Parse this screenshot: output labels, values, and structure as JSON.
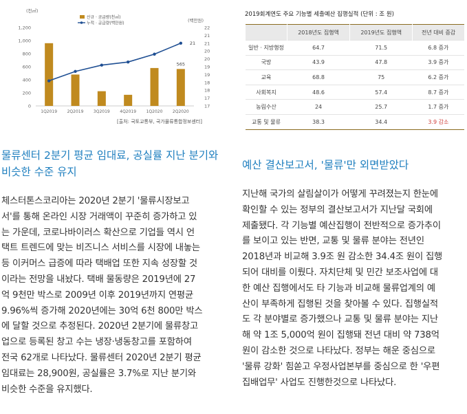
{
  "chart": {
    "left_unit": "(천㎡)",
    "right_unit": "(백만원)",
    "legend": [
      "신규 · 공급량(천㎡)",
      "누적 · 공급량(백만원)"
    ],
    "source": "[출처: 국토교통부, 국가물류통합정보센터]",
    "bar_color": "#c08a1f",
    "line_color": "#1f4f93"
  },
  "chart_data": {
    "type": "bar",
    "categories": [
      "1Q2019",
      "2Q2019",
      "3Q2019",
      "4Q2019",
      "1Q2020",
      "2Q2020"
    ],
    "series": [
      {
        "name": "신규 · 공급량(천㎡)",
        "type": "bar",
        "axis": "left",
        "values": [
          960,
          480,
          225,
          170,
          580,
          565
        ]
      },
      {
        "name": "누적 · 공급량(백만원)",
        "type": "line",
        "axis": "right",
        "values": [
          18.6,
          19.2,
          19.6,
          19.8,
          20.3,
          21
        ]
      }
    ],
    "data_labels": [
      "565",
      "21"
    ],
    "y_left": {
      "ticks": [
        "0",
        "200",
        "400",
        "600",
        "800",
        "1,000",
        "1,200"
      ],
      "range": [
        0,
        1200
      ]
    },
    "y_right": {
      "ticks": [
        "17",
        "17",
        "18",
        "18",
        "19",
        "19",
        "20",
        "20",
        "21",
        "21",
        "22"
      ],
      "range": [
        17,
        22
      ]
    }
  },
  "table": {
    "title": "2019회계연도 주요 기능별 세출예산 집행실적 (단위 : 조 원)",
    "headers": [
      "",
      "2018년도 집행액",
      "2019년도 집행액",
      "전년 대비 증감"
    ],
    "rows": [
      [
        "일반 · 지방행정",
        "64.7",
        "71.5",
        "6.8 증가"
      ],
      [
        "국방",
        "43.9",
        "47.8",
        "3.9 증가"
      ],
      [
        "교육",
        "68.8",
        "75",
        "6.2 증가"
      ],
      [
        "사회복지",
        "48.6",
        "57.4",
        "8.7 증가"
      ],
      [
        "농림수산",
        "24",
        "25.7",
        "1.7 증가"
      ],
      [
        "교통 및 물류",
        "38.3",
        "34.4",
        "3.9 감소"
      ]
    ]
  },
  "left_article": {
    "heading": [
      "물류센터 2분기 평균 임대료, 공실률 지난 분기와",
      "비슷한 수준 유지"
    ],
    "lines": [
      "체스터톤스코리아는 2020년 2분기 '물류시장보고",
      "서'를 통해 온라인 시장 거래액이 꾸준히 증가하고 있",
      "는 가운데, 코로나바이러스 확산으로 기업들 역시 언",
      "택트 트렌드에 맞는 비즈니스 서비스를 시장에 내놓는",
      "등 이커머스 급증에 따라 택배업 또한 지속 성장할 것",
      "이라는 전망을 내놨다. 택배 물동량은 2019년에 27",
      "억 9천만 박스로 2009년 이후 2019년까지 연평균",
      "9.96%씩 증가해 2020년에는 30억 6천 800만 박스",
      "에 달할 것으로 추정된다. 2020년 2분기에 물류창고",
      "업으로 등록된 창고 수는 냉장·냉동창고를 포함하여",
      "전국 62개로 나타났다. 물류센터 2020년 2분기 평균",
      "임대료는 28,900원, 공실률은 3.7%로 지난 분기와",
      "비슷한 수준을 유지했다."
    ]
  },
  "right_article": {
    "heading": "예산 결산보고서, '물류'만 외면받았다",
    "lines": [
      "지난해 국가의 살림살이가 어떻게 꾸려졌는지 한눈에",
      "확인할 수 있는 정부의 결산보고서가 지난달 국회에",
      "제출됐다. 각 기능별 예산집행이 전반적으로 증가추이",
      "를 보이고 있는 반면, 교통 및 물류 분야는 전년인",
      "2018년과 비교해 3.9조 원 감소한 34.4조 원이 집행",
      "되어 대비를 이뤘다. 자치단체 및 민간 보조사업에 대",
      "한 예산 집행에서도 타 기능과 비교해 물류업계의 예",
      "산이 부족하게 집행된 것을 찾아볼 수 있다. 집행실적",
      "도 각 분야별로 증가했으나 교통 및 물류 분야는 지난",
      "해 약 1조 5,000억 원이 집행돼 전년 대비 약 738억",
      "원이 감소한 것으로 나타났다. 정부는 해운 중심으로",
      "'물류 강화' 힘쏟고 우정사업본부를 중심으로 한 '우편",
      "집배업무' 사업도 진행한것으로 나타났다."
    ]
  }
}
